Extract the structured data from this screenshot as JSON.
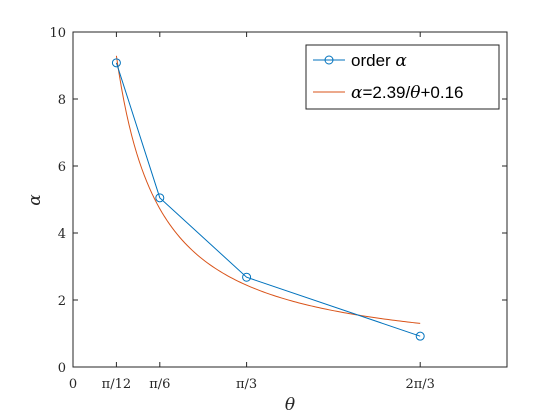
{
  "chart_data": {
    "type": "line",
    "xlabel": "θ",
    "ylabel": "α",
    "xlim": [
      0,
      2.618
    ],
    "ylim": [
      0,
      10
    ],
    "x_ticks": [
      {
        "value": 0,
        "label": "0"
      },
      {
        "value": 0.2618,
        "label": "π/12"
      },
      {
        "value": 0.5236,
        "label": "π/6"
      },
      {
        "value": 1.0472,
        "label": "π/3"
      },
      {
        "value": 2.0944,
        "label": "2π/3"
      }
    ],
    "y_ticks": [
      {
        "value": 0,
        "label": "0"
      },
      {
        "value": 2,
        "label": "2"
      },
      {
        "value": 4,
        "label": "4"
      },
      {
        "value": 6,
        "label": "6"
      },
      {
        "value": 8,
        "label": "8"
      },
      {
        "value": 10,
        "label": "10"
      }
    ],
    "series": [
      {
        "name": "order α",
        "name_prefix": "order ",
        "name_math": "α",
        "color": "#0072BD",
        "marker": "circle",
        "x": [
          0.2618,
          0.5236,
          1.0472,
          2.0944
        ],
        "y": [
          9.08,
          5.05,
          2.68,
          0.92
        ]
      },
      {
        "name": "α=2.39/θ+0.16",
        "name_math1": "α",
        "name_mid": "=2.39/",
        "name_math2": "θ",
        "name_tail": "+0.16",
        "color": "#D95319",
        "marker": "none",
        "fit": {
          "a": 2.39,
          "b": 0.16,
          "x_start": 0.2618,
          "x_end": 2.0944
        }
      }
    ],
    "legend_position": "top-right",
    "grid": false
  }
}
